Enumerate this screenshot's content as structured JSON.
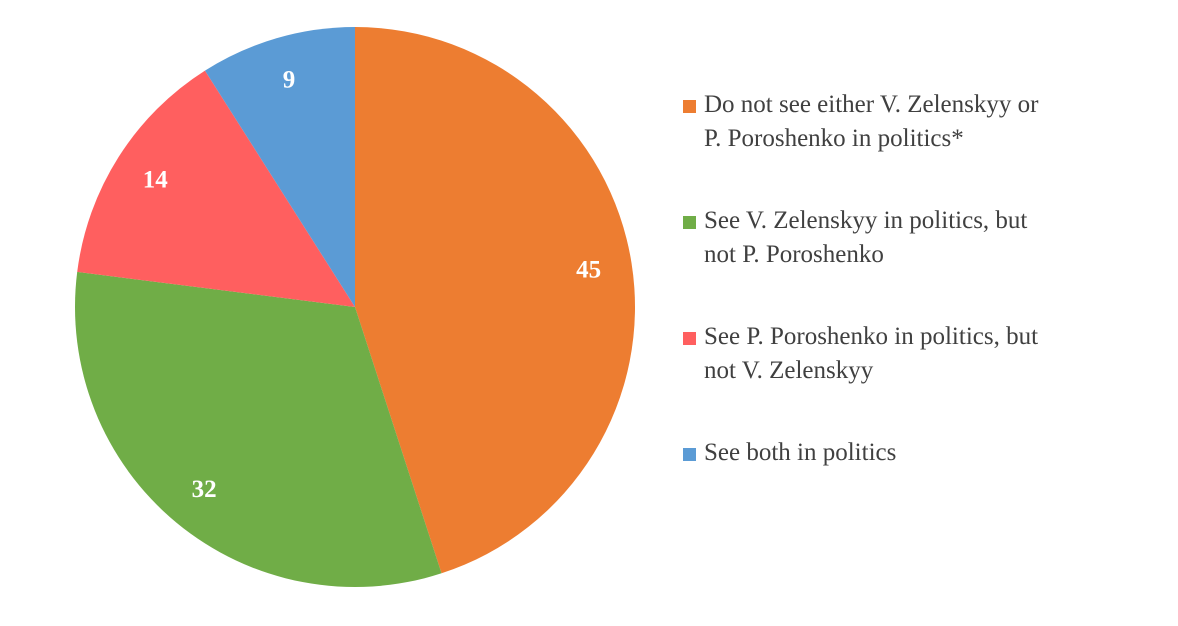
{
  "chart_data": {
    "type": "pie",
    "title": "",
    "categories": [
      "Do not see either V. Zelenskyy or P. Poroshenko in politics*",
      "See V. Zelenskyy in politics, but not P. Poroshenko",
      "See P. Poroshenko in politics, but not V. Zelenskyy",
      "See both in politics"
    ],
    "values": [
      45,
      32,
      14,
      9
    ],
    "data_labels": [
      "45",
      "32",
      "14",
      "9"
    ],
    "colors": [
      "#ED7D31",
      "#70AD47",
      "#FF5F5F",
      "#5B9BD5"
    ],
    "start_angle": "12 o'clock",
    "direction": "clockwise",
    "legend_position": "right"
  },
  "legend": {
    "items": [
      {
        "label_line1": "Do not see either V. Zelenskyy or",
        "label_line2": "P. Poroshenko in politics*",
        "color": "#ED7D31"
      },
      {
        "label_line1": "See V. Zelenskyy in politics, but",
        "label_line2": "not P. Poroshenko",
        "color": "#70AD47"
      },
      {
        "label_line1": "See P. Poroshenko in politics, but",
        "label_line2": "not V. Zelenskyy",
        "color": "#FF5F5F"
      },
      {
        "label_line1": "See both in politics",
        "label_line2": "",
        "color": "#5B9BD5"
      }
    ]
  }
}
